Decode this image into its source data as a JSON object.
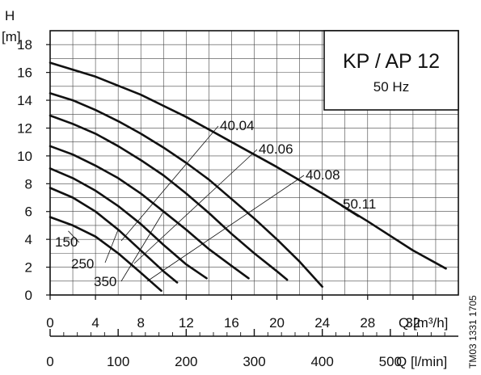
{
  "chart_data": {
    "type": "line",
    "title": "KP / AP 12",
    "subtitle": "50 Hz",
    "y_axis": {
      "symbol": "H",
      "unit": "[m]",
      "ylim": [
        0,
        19
      ],
      "ticks": [
        0,
        2,
        4,
        6,
        8,
        10,
        12,
        14,
        16,
        18
      ],
      "tick_labels": [
        "0",
        "2",
        "4",
        "6",
        "8",
        "10",
        "12",
        "14",
        "16",
        "18"
      ]
    },
    "x_axis": {
      "label": "Q [m³/h]",
      "xlim": [
        0,
        36
      ],
      "ticks": [
        0,
        4,
        8,
        12,
        16,
        20,
        24,
        28,
        32
      ],
      "tick_labels": [
        "0",
        "4",
        "8",
        "12",
        "16",
        "20",
        "24",
        "28",
        "32"
      ]
    },
    "x_axis_secondary": {
      "label": "Q [l/min]",
      "xlim": [
        0,
        600
      ],
      "ticks": [
        0,
        100,
        200,
        300,
        400,
        500
      ],
      "tick_labels": [
        "0",
        "100",
        "200",
        "300",
        "400",
        "500"
      ],
      "minor_step": 20
    },
    "grid": true,
    "series": [
      {
        "name": "150",
        "points": [
          [
            0,
            5.6
          ],
          [
            2,
            5.0
          ],
          [
            4,
            4.2
          ],
          [
            6,
            3.0
          ],
          [
            8,
            1.6
          ],
          [
            9.8,
            0.3
          ]
        ]
      },
      {
        "name": "250",
        "points": [
          [
            0,
            7.7
          ],
          [
            2,
            7.0
          ],
          [
            4,
            6.0
          ],
          [
            6,
            4.7
          ],
          [
            8,
            3.2
          ],
          [
            10,
            1.7
          ],
          [
            11.2,
            0.9
          ]
        ]
      },
      {
        "name": "350",
        "points": [
          [
            0,
            9.1
          ],
          [
            2,
            8.4
          ],
          [
            4,
            7.5
          ],
          [
            6,
            6.4
          ],
          [
            8,
            5.1
          ],
          [
            10,
            3.6
          ],
          [
            12,
            2.2
          ],
          [
            13.8,
            1.2
          ]
        ]
      },
      {
        "name": "40.04",
        "points": [
          [
            0,
            10.7
          ],
          [
            2,
            10.1
          ],
          [
            4,
            9.3
          ],
          [
            6,
            8.4
          ],
          [
            8,
            7.3
          ],
          [
            10,
            6.0
          ],
          [
            12,
            4.7
          ],
          [
            14,
            3.3
          ],
          [
            16,
            2.1
          ],
          [
            17.5,
            1.2
          ]
        ]
      },
      {
        "name": "40.06",
        "points": [
          [
            0,
            12.9
          ],
          [
            2,
            12.3
          ],
          [
            4,
            11.6
          ],
          [
            6,
            10.7
          ],
          [
            8,
            9.7
          ],
          [
            10,
            8.6
          ],
          [
            12,
            7.3
          ],
          [
            14,
            5.9
          ],
          [
            16,
            4.4
          ],
          [
            18,
            3.0
          ],
          [
            20,
            1.7
          ],
          [
            20.9,
            1.1
          ]
        ]
      },
      {
        "name": "40.08",
        "points": [
          [
            0,
            14.5
          ],
          [
            2,
            14.0
          ],
          [
            4,
            13.3
          ],
          [
            6,
            12.5
          ],
          [
            8,
            11.6
          ],
          [
            10,
            10.6
          ],
          [
            12,
            9.5
          ],
          [
            14,
            8.3
          ],
          [
            16,
            6.9
          ],
          [
            18,
            5.5
          ],
          [
            20,
            4.0
          ],
          [
            22,
            2.4
          ],
          [
            24,
            0.6
          ]
        ]
      },
      {
        "name": "50.11",
        "points": [
          [
            0,
            16.7
          ],
          [
            4,
            15.7
          ],
          [
            8,
            14.4
          ],
          [
            12,
            12.8
          ],
          [
            16,
            11.0
          ],
          [
            20,
            9.2
          ],
          [
            24,
            7.3
          ],
          [
            28,
            5.3
          ],
          [
            32,
            3.2
          ],
          [
            34.9,
            1.9
          ]
        ]
      }
    ],
    "annotations": [
      "TM03 1331 1705"
    ]
  }
}
